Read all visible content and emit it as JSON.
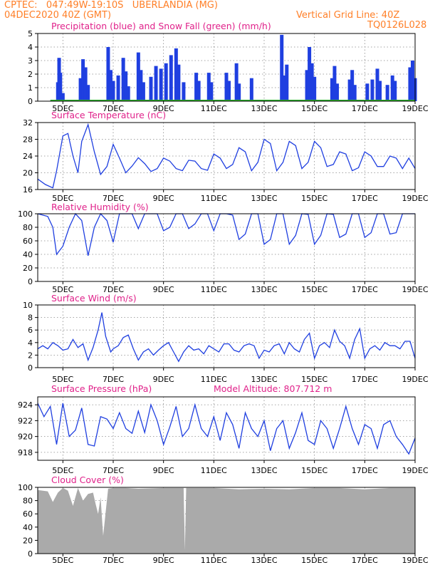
{
  "header": {
    "line1": "CPTEC:   047:49W-19:10S   UBERLANDIA (MG)",
    "line2": "04DEC2020 40Z (GMT)",
    "grid_note": "Vertical Grid Line: 40Z",
    "code": "TQ0126L028"
  },
  "colors": {
    "header": "#ff7f27",
    "title": "#e0218a",
    "line": "#1f3fe0",
    "bar": "#1f3fe0",
    "snow": "#2bb02b",
    "cloud": "#aaaaaa"
  },
  "chart_data": [
    {
      "type": "bar",
      "title": "Precipitation (blue) and Snow Fall (green) (mm/h)",
      "x_tick_labels": [
        "5DEC",
        "7DEC",
        "9DEC",
        "11DEC",
        "13DEC",
        "15DEC",
        "17DEC",
        "19DEC"
      ],
      "ylim": [
        0,
        5
      ],
      "y_ticks": [
        0,
        1,
        2,
        3,
        4,
        5
      ],
      "series": [
        {
          "name": "Precipitation",
          "values": [
            {
              "x": 4.8,
              "y": 1.4
            },
            {
              "x": 4.85,
              "y": 3.2
            },
            {
              "x": 4.9,
              "y": 2.1
            },
            {
              "x": 5.0,
              "y": 0.6
            },
            {
              "x": 5.7,
              "y": 1.7
            },
            {
              "x": 5.8,
              "y": 3.1
            },
            {
              "x": 5.9,
              "y": 2.5
            },
            {
              "x": 6.0,
              "y": 1.2
            },
            {
              "x": 6.8,
              "y": 4.0
            },
            {
              "x": 6.9,
              "y": 2.3
            },
            {
              "x": 7.0,
              "y": 1.5
            },
            {
              "x": 7.2,
              "y": 1.9
            },
            {
              "x": 7.4,
              "y": 3.2
            },
            {
              "x": 7.5,
              "y": 2.2
            },
            {
              "x": 7.6,
              "y": 1.1
            },
            {
              "x": 8.0,
              "y": 3.6
            },
            {
              "x": 8.1,
              "y": 2.3
            },
            {
              "x": 8.2,
              "y": 1.4
            },
            {
              "x": 8.5,
              "y": 1.8
            },
            {
              "x": 8.7,
              "y": 2.6
            },
            {
              "x": 8.9,
              "y": 2.4
            },
            {
              "x": 9.1,
              "y": 2.8
            },
            {
              "x": 9.3,
              "y": 3.4
            },
            {
              "x": 9.5,
              "y": 3.9
            },
            {
              "x": 9.6,
              "y": 2.7
            },
            {
              "x": 9.8,
              "y": 1.4
            },
            {
              "x": 10.3,
              "y": 2.1
            },
            {
              "x": 10.4,
              "y": 1.5
            },
            {
              "x": 10.8,
              "y": 2.1
            },
            {
              "x": 10.9,
              "y": 1.4
            },
            {
              "x": 11.5,
              "y": 2.1
            },
            {
              "x": 11.6,
              "y": 1.5
            },
            {
              "x": 11.9,
              "y": 2.8
            },
            {
              "x": 12.0,
              "y": 1.3
            },
            {
              "x": 12.5,
              "y": 1.7
            },
            {
              "x": 13.7,
              "y": 4.9
            },
            {
              "x": 13.8,
              "y": 1.9
            },
            {
              "x": 13.9,
              "y": 2.7
            },
            {
              "x": 14.7,
              "y": 2.3
            },
            {
              "x": 14.8,
              "y": 4.0
            },
            {
              "x": 14.9,
              "y": 2.8
            },
            {
              "x": 15.0,
              "y": 1.8
            },
            {
              "x": 15.7,
              "y": 1.7
            },
            {
              "x": 15.8,
              "y": 2.6
            },
            {
              "x": 15.9,
              "y": 1.3
            },
            {
              "x": 16.4,
              "y": 1.6
            },
            {
              "x": 16.5,
              "y": 2.3
            },
            {
              "x": 16.6,
              "y": 1.2
            },
            {
              "x": 17.1,
              "y": 1.3
            },
            {
              "x": 17.3,
              "y": 1.6
            },
            {
              "x": 17.5,
              "y": 2.4
            },
            {
              "x": 17.6,
              "y": 1.5
            },
            {
              "x": 17.9,
              "y": 1.2
            },
            {
              "x": 18.1,
              "y": 1.9
            },
            {
              "x": 18.2,
              "y": 1.5
            },
            {
              "x": 18.8,
              "y": 2.5
            },
            {
              "x": 18.9,
              "y": 3.0
            },
            {
              "x": 19.0,
              "y": 1.7
            }
          ]
        },
        {
          "name": "Snow Fall",
          "values": [
            {
              "x": 4.5,
              "y": 0
            },
            {
              "x": 19.0,
              "y": 0
            }
          ]
        }
      ]
    },
    {
      "type": "line",
      "title": "Surface Temperature (nC)",
      "ylim": [
        16,
        32
      ],
      "y_ticks": [
        16,
        20,
        24,
        28,
        32
      ],
      "x": [
        4.0,
        4.3,
        4.6,
        4.75,
        5.0,
        5.2,
        5.4,
        5.6,
        5.75,
        6.0,
        6.25,
        6.5,
        6.75,
        7.0,
        7.25,
        7.5,
        7.75,
        8.0,
        8.25,
        8.5,
        8.75,
        9.0,
        9.25,
        9.5,
        9.75,
        10.0,
        10.25,
        10.5,
        10.75,
        11.0,
        11.25,
        11.5,
        11.75,
        12.0,
        12.25,
        12.5,
        12.75,
        13.0,
        13.25,
        13.5,
        13.75,
        14.0,
        14.25,
        14.5,
        14.75,
        15.0,
        15.25,
        15.5,
        15.75,
        16.0,
        16.25,
        16.5,
        16.75,
        17.0,
        17.25,
        17.5,
        17.75,
        18.0,
        18.25,
        18.5,
        18.75,
        19.0
      ],
      "values": [
        18.5,
        17.2,
        16.4,
        20.5,
        28.8,
        29.4,
        24.0,
        20.0,
        27.5,
        31.5,
        25.0,
        19.6,
        21.5,
        26.8,
        23.5,
        20.0,
        21.6,
        23.6,
        22.2,
        20.3,
        21.0,
        23.5,
        22.8,
        21.0,
        20.5,
        23.0,
        22.8,
        21.0,
        20.6,
        24.5,
        23.5,
        21.0,
        22.0,
        26.0,
        25.0,
        20.5,
        22.5,
        28.0,
        27.0,
        20.5,
        22.5,
        27.5,
        26.5,
        21.0,
        22.5,
        27.5,
        26.0,
        21.5,
        22.0,
        25.0,
        24.5,
        20.5,
        21.2,
        25.0,
        24.0,
        21.5,
        21.5,
        24.0,
        23.5,
        21.0,
        23.5,
        21.0
      ]
    },
    {
      "type": "line",
      "title": "Relative Humidity (%)",
      "ylim": [
        0,
        100
      ],
      "y_ticks": [
        0,
        20,
        40,
        60,
        80,
        100
      ],
      "x": [
        4.0,
        4.2,
        4.4,
        4.6,
        4.75,
        5.0,
        5.25,
        5.5,
        5.75,
        6.0,
        6.25,
        6.5,
        6.75,
        7.0,
        7.25,
        7.5,
        7.75,
        8.0,
        8.25,
        8.5,
        8.75,
        9.0,
        9.25,
        9.5,
        9.75,
        10.0,
        10.25,
        10.5,
        10.75,
        11.0,
        11.25,
        11.5,
        11.75,
        12.0,
        12.25,
        12.5,
        12.75,
        13.0,
        13.25,
        13.5,
        13.75,
        14.0,
        14.25,
        14.5,
        14.75,
        15.0,
        15.25,
        15.5,
        15.75,
        16.0,
        16.25,
        16.5,
        16.75,
        17.0,
        17.25,
        17.5,
        17.75,
        18.0,
        18.25,
        18.5,
        18.75,
        19.0
      ],
      "values": [
        100,
        98,
        96,
        80,
        40,
        52,
        80,
        100,
        90,
        38,
        80,
        100,
        90,
        58,
        100,
        100,
        100,
        78,
        100,
        100,
        100,
        75,
        80,
        100,
        100,
        78,
        85,
        100,
        100,
        75,
        100,
        100,
        98,
        62,
        70,
        100,
        100,
        55,
        62,
        100,
        100,
        55,
        68,
        100,
        99,
        55,
        68,
        100,
        99,
        65,
        70,
        100,
        100,
        65,
        72,
        100,
        100,
        70,
        72,
        100,
        100,
        100
      ]
    },
    {
      "type": "line",
      "title": "Surface Wind (m/s)",
      "ylim": [
        0,
        10
      ],
      "y_ticks": [
        0,
        2,
        4,
        6,
        8,
        10
      ],
      "x": [
        4.0,
        4.2,
        4.4,
        4.6,
        4.8,
        5.0,
        5.2,
        5.4,
        5.6,
        5.8,
        6.0,
        6.2,
        6.4,
        6.55,
        6.7,
        6.9,
        7.0,
        7.2,
        7.4,
        7.6,
        7.8,
        8.0,
        8.2,
        8.4,
        8.6,
        8.8,
        9.0,
        9.2,
        9.4,
        9.6,
        9.8,
        10.0,
        10.2,
        10.4,
        10.6,
        10.8,
        11.0,
        11.2,
        11.4,
        11.6,
        11.8,
        12.0,
        12.2,
        12.4,
        12.6,
        12.8,
        13.0,
        13.2,
        13.4,
        13.6,
        13.8,
        14.0,
        14.2,
        14.4,
        14.6,
        14.8,
        15.0,
        15.2,
        15.4,
        15.6,
        15.8,
        16.0,
        16.2,
        16.4,
        16.6,
        16.8,
        17.0,
        17.2,
        17.4,
        17.6,
        17.8,
        18.0,
        18.2,
        18.4,
        18.6,
        18.8,
        19.0
      ],
      "values": [
        3.0,
        3.5,
        3.0,
        4.0,
        3.5,
        2.8,
        3.0,
        4.5,
        3.2,
        3.8,
        1.2,
        3.2,
        6.0,
        8.8,
        5.0,
        2.5,
        3.0,
        3.5,
        4.8,
        5.2,
        3.0,
        1.2,
        2.5,
        3.0,
        2.0,
        2.8,
        3.5,
        4.0,
        2.5,
        1.0,
        2.5,
        3.5,
        2.8,
        3.0,
        2.2,
        3.5,
        3.0,
        2.5,
        3.8,
        3.8,
        2.8,
        2.5,
        3.5,
        3.8,
        3.5,
        1.5,
        2.8,
        2.5,
        3.5,
        3.8,
        2.2,
        4.0,
        3.0,
        2.5,
        4.5,
        5.5,
        1.5,
        3.5,
        4.0,
        3.2,
        6.0,
        4.2,
        3.5,
        1.5,
        4.5,
        6.2,
        1.5,
        3.0,
        3.5,
        2.8,
        4.0,
        3.5,
        3.5,
        3.0,
        4.2,
        4.2,
        1.5
      ]
    },
    {
      "type": "line",
      "title": "Surface Pressure (hPa)",
      "annotation": "Model Altitude: 807.712 m",
      "ylim": [
        917,
        925
      ],
      "y_ticks": [
        918,
        920,
        922,
        924
      ],
      "x": [
        4.0,
        4.25,
        4.5,
        4.75,
        5.0,
        5.25,
        5.5,
        5.75,
        6.0,
        6.25,
        6.5,
        6.75,
        7.0,
        7.25,
        7.5,
        7.75,
        8.0,
        8.25,
        8.5,
        8.75,
        9.0,
        9.25,
        9.5,
        9.75,
        10.0,
        10.25,
        10.5,
        10.75,
        11.0,
        11.25,
        11.5,
        11.75,
        12.0,
        12.25,
        12.5,
        12.75,
        13.0,
        13.25,
        13.5,
        13.75,
        14.0,
        14.25,
        14.5,
        14.75,
        15.0,
        15.25,
        15.5,
        15.75,
        16.0,
        16.25,
        16.5,
        16.75,
        17.0,
        17.25,
        17.5,
        17.75,
        18.0,
        18.25,
        18.5,
        18.75,
        19.0
      ],
      "values": [
        924.2,
        922.5,
        923.8,
        919.0,
        924.2,
        920.0,
        920.8,
        923.6,
        919.0,
        918.8,
        922.5,
        922.2,
        921.0,
        923.0,
        921.0,
        920.4,
        923.2,
        920.5,
        924.0,
        922.0,
        919.0,
        921.2,
        923.8,
        920.0,
        921.0,
        924.0,
        921.0,
        920.0,
        922.5,
        919.5,
        923.0,
        921.5,
        918.5,
        923.0,
        921.0,
        920.0,
        922.0,
        918.2,
        921.0,
        922.0,
        918.5,
        920.5,
        923.0,
        919.5,
        919.0,
        922.0,
        921.0,
        918.5,
        921.0,
        923.8,
        921.0,
        919.0,
        921.5,
        921.0,
        918.5,
        921.5,
        922.0,
        920.0,
        919.0,
        917.8,
        919.8
      ]
    },
    {
      "type": "area",
      "title": "Cloud Cover (%)",
      "ylim": [
        0,
        100
      ],
      "y_ticks": [
        0,
        20,
        40,
        60,
        80,
        100
      ],
      "x": [
        4.0,
        4.4,
        4.6,
        4.8,
        5.0,
        5.2,
        5.4,
        5.6,
        5.8,
        6.0,
        6.2,
        6.3,
        6.4,
        6.5,
        6.6,
        6.8,
        7.0,
        7.5,
        8.0,
        9.0,
        9.5,
        9.8,
        9.85,
        9.9,
        10.0,
        11.0,
        12.0,
        13.0,
        14.0,
        15.0,
        16.0,
        17.0,
        18.0,
        19.0
      ],
      "values": [
        96,
        94,
        78,
        92,
        99,
        95,
        72,
        99,
        80,
        90,
        92,
        75,
        60,
        85,
        27,
        98,
        99,
        99,
        98,
        99,
        99,
        99,
        5,
        99,
        99,
        99,
        97,
        98,
        97,
        99,
        99,
        97,
        99,
        99
      ]
    }
  ]
}
